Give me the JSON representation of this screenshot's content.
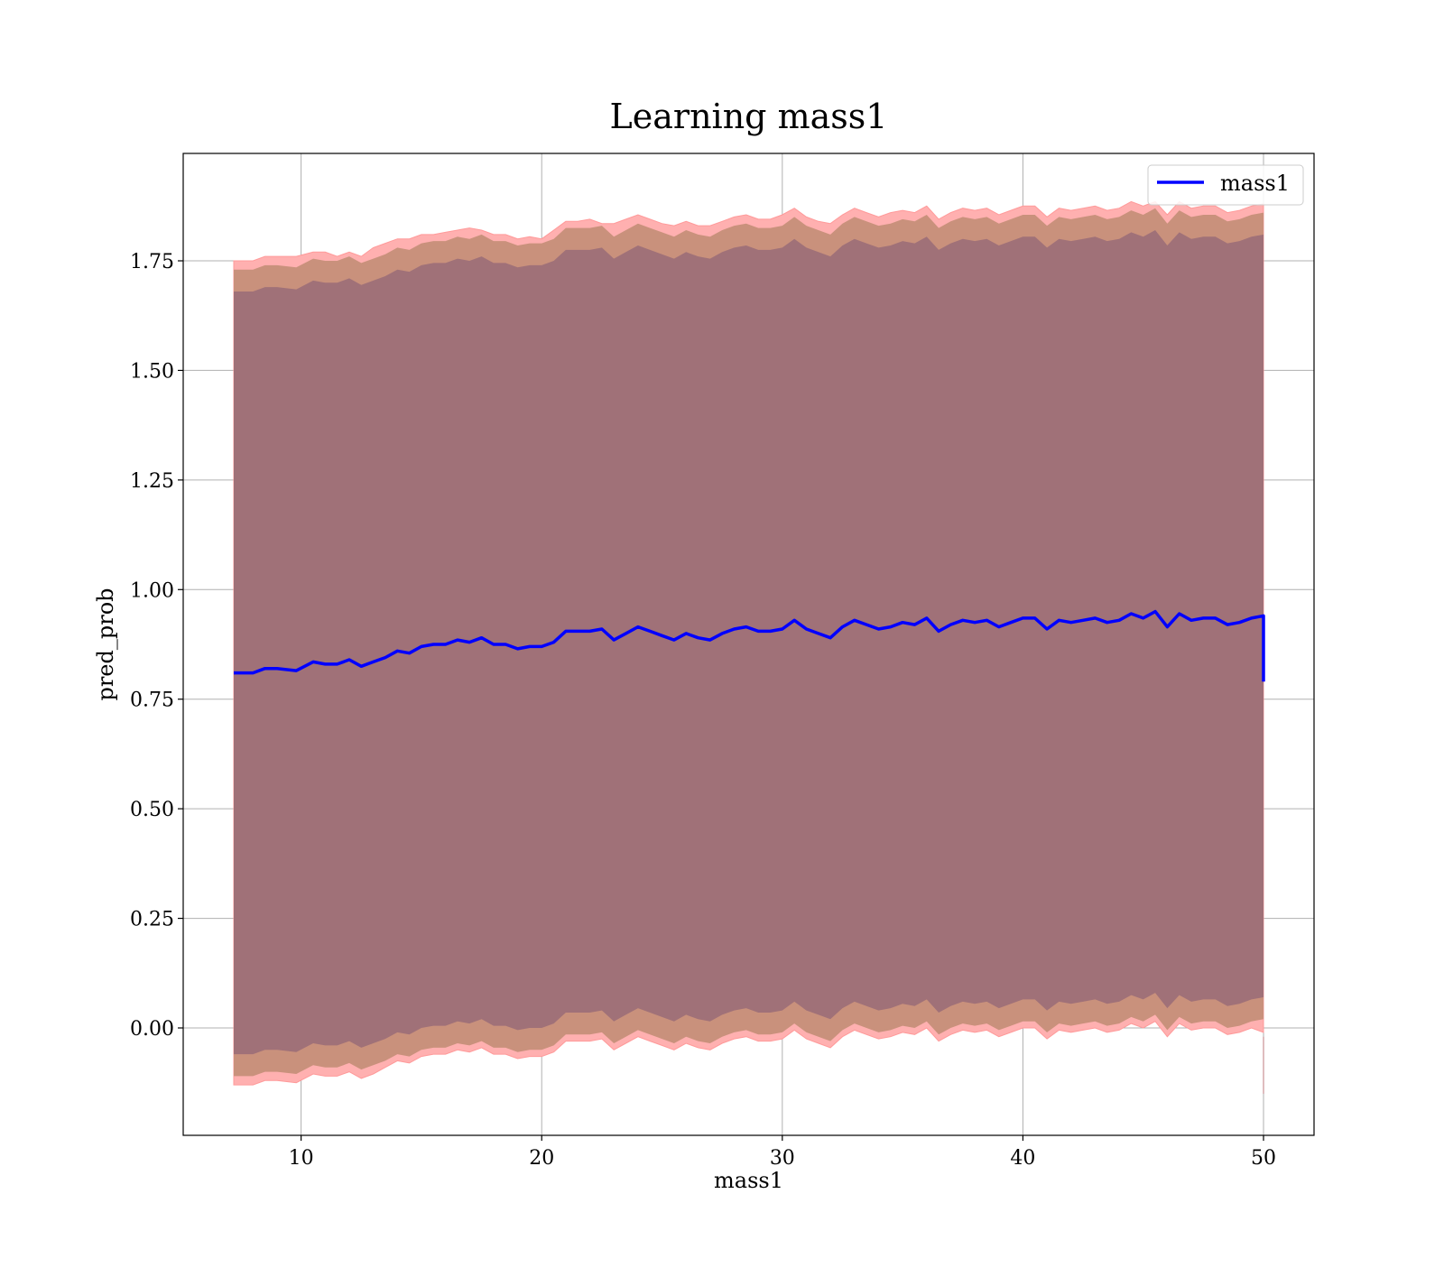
{
  "chart_data": {
    "type": "area",
    "title": "Learning mass1",
    "xlabel": "mass1",
    "ylabel": "pred_prob",
    "xlim": [
      5.1,
      52.1
    ],
    "ylim": [
      -0.245,
      1.995
    ],
    "x_ticks": [
      10,
      20,
      30,
      40,
      50
    ],
    "x_tick_labels": [
      "10",
      "20",
      "30",
      "40",
      "50"
    ],
    "y_ticks": [
      0.0,
      0.25,
      0.5,
      0.75,
      1.0,
      1.25,
      1.5,
      1.75
    ],
    "y_tick_labels": [
      "0.00",
      "0.25",
      "0.50",
      "0.75",
      "1.00",
      "1.25",
      "1.50",
      "1.75"
    ],
    "grid": true,
    "legend": {
      "position": "upper-right",
      "entries": [
        "mass1"
      ]
    },
    "colors": {
      "line": "#0000ff",
      "band_outer": "#ffb0b0",
      "band_middle": "#c9917c",
      "band_inner": "#a07178",
      "grid": "#b0b0b0"
    },
    "series": [
      {
        "name": "mass1",
        "x": [
          7.2,
          8.0,
          8.5,
          9.0,
          9.8,
          10.5,
          11.0,
          11.5,
          12.0,
          12.5,
          13.0,
          13.5,
          14.0,
          14.5,
          15.0,
          15.5,
          16.0,
          16.5,
          17.0,
          17.5,
          18.0,
          18.5,
          19.0,
          19.5,
          20.0,
          20.5,
          21.0,
          21.5,
          22.0,
          22.5,
          23.0,
          23.5,
          24.0,
          24.5,
          25.0,
          25.5,
          26.0,
          26.5,
          27.0,
          27.5,
          28.0,
          28.5,
          29.0,
          29.5,
          30.0,
          30.5,
          31.0,
          31.5,
          32.0,
          32.5,
          33.0,
          33.5,
          34.0,
          34.5,
          35.0,
          35.5,
          36.0,
          36.5,
          37.0,
          37.5,
          38.0,
          38.5,
          39.0,
          39.5,
          40.0,
          40.5,
          41.0,
          41.5,
          42.0,
          42.5,
          43.0,
          43.5,
          44.0,
          44.5,
          45.0,
          45.5,
          46.0,
          46.5,
          47.0,
          47.5,
          48.0,
          48.5,
          49.0,
          49.5,
          50.0
        ],
        "y": [
          0.81,
          0.81,
          0.82,
          0.82,
          0.815,
          0.835,
          0.83,
          0.83,
          0.84,
          0.825,
          0.835,
          0.845,
          0.86,
          0.855,
          0.87,
          0.875,
          0.875,
          0.885,
          0.88,
          0.89,
          0.875,
          0.875,
          0.865,
          0.87,
          0.87,
          0.88,
          0.905,
          0.905,
          0.905,
          0.91,
          0.885,
          0.9,
          0.915,
          0.905,
          0.895,
          0.885,
          0.9,
          0.89,
          0.885,
          0.9,
          0.91,
          0.915,
          0.905,
          0.905,
          0.91,
          0.93,
          0.91,
          0.9,
          0.89,
          0.915,
          0.93,
          0.92,
          0.91,
          0.915,
          0.925,
          0.92,
          0.935,
          0.905,
          0.92,
          0.93,
          0.925,
          0.93,
          0.915,
          0.925,
          0.935,
          0.935,
          0.91,
          0.93,
          0.925,
          0.93,
          0.935,
          0.925,
          0.93,
          0.945,
          0.935,
          0.95,
          0.915,
          0.945,
          0.93,
          0.935,
          0.935,
          0.92,
          0.925,
          0.935,
          0.94
        ],
        "y_end": 0.79,
        "band_outer": {
          "upper": [
            1.75,
            1.75,
            1.76,
            1.76,
            1.76,
            1.77,
            1.77,
            1.76,
            1.77,
            1.76,
            1.78,
            1.79,
            1.8,
            1.8,
            1.81,
            1.81,
            1.815,
            1.82,
            1.825,
            1.82,
            1.81,
            1.81,
            1.8,
            1.805,
            1.8,
            1.82,
            1.84,
            1.84,
            1.845,
            1.835,
            1.835,
            1.845,
            1.855,
            1.845,
            1.835,
            1.83,
            1.84,
            1.83,
            1.83,
            1.84,
            1.85,
            1.855,
            1.845,
            1.845,
            1.855,
            1.87,
            1.85,
            1.84,
            1.835,
            1.855,
            1.87,
            1.86,
            1.85,
            1.86,
            1.865,
            1.86,
            1.875,
            1.845,
            1.86,
            1.87,
            1.865,
            1.87,
            1.855,
            1.865,
            1.875,
            1.875,
            1.85,
            1.87,
            1.865,
            1.87,
            1.875,
            1.865,
            1.87,
            1.885,
            1.875,
            1.885,
            1.855,
            1.885,
            1.87,
            1.875,
            1.875,
            1.86,
            1.865,
            1.875,
            1.88
          ],
          "lower": [
            -0.13,
            -0.13,
            -0.12,
            -0.12,
            -0.125,
            -0.105,
            -0.11,
            -0.11,
            -0.1,
            -0.115,
            -0.105,
            -0.09,
            -0.075,
            -0.08,
            -0.065,
            -0.06,
            -0.06,
            -0.05,
            -0.055,
            -0.045,
            -0.06,
            -0.06,
            -0.07,
            -0.065,
            -0.065,
            -0.055,
            -0.03,
            -0.03,
            -0.03,
            -0.025,
            -0.05,
            -0.035,
            -0.02,
            -0.03,
            -0.04,
            -0.05,
            -0.035,
            -0.045,
            -0.05,
            -0.035,
            -0.025,
            -0.02,
            -0.03,
            -0.03,
            -0.025,
            -0.005,
            -0.025,
            -0.035,
            -0.045,
            -0.02,
            -0.005,
            -0.015,
            -0.025,
            -0.02,
            -0.01,
            -0.015,
            0.0,
            -0.03,
            -0.015,
            -0.005,
            -0.01,
            -0.005,
            -0.02,
            -0.01,
            0.0,
            0.0,
            -0.025,
            -0.005,
            -0.01,
            -0.005,
            0.0,
            -0.01,
            -0.005,
            0.01,
            0.0,
            0.015,
            -0.02,
            0.01,
            -0.005,
            0.0,
            0.0,
            -0.015,
            -0.01,
            0.0,
            -0.01
          ]
        },
        "band_middle": {
          "upper": [
            1.73,
            1.73,
            1.74,
            1.74,
            1.735,
            1.755,
            1.75,
            1.75,
            1.76,
            1.745,
            1.755,
            1.765,
            1.78,
            1.775,
            1.79,
            1.795,
            1.795,
            1.805,
            1.8,
            1.81,
            1.795,
            1.795,
            1.785,
            1.79,
            1.79,
            1.8,
            1.825,
            1.825,
            1.825,
            1.83,
            1.805,
            1.82,
            1.835,
            1.825,
            1.815,
            1.805,
            1.82,
            1.81,
            1.805,
            1.82,
            1.83,
            1.835,
            1.825,
            1.825,
            1.83,
            1.85,
            1.83,
            1.82,
            1.81,
            1.835,
            1.85,
            1.84,
            1.83,
            1.835,
            1.845,
            1.84,
            1.855,
            1.825,
            1.84,
            1.85,
            1.845,
            1.85,
            1.835,
            1.845,
            1.855,
            1.855,
            1.83,
            1.85,
            1.845,
            1.85,
            1.855,
            1.845,
            1.85,
            1.865,
            1.855,
            1.87,
            1.835,
            1.865,
            1.85,
            1.855,
            1.855,
            1.84,
            1.845,
            1.855,
            1.86
          ],
          "lower": [
            -0.11,
            -0.11,
            -0.1,
            -0.1,
            -0.105,
            -0.085,
            -0.09,
            -0.09,
            -0.08,
            -0.095,
            -0.085,
            -0.075,
            -0.06,
            -0.065,
            -0.05,
            -0.045,
            -0.045,
            -0.035,
            -0.04,
            -0.03,
            -0.045,
            -0.045,
            -0.055,
            -0.05,
            -0.05,
            -0.04,
            -0.015,
            -0.015,
            -0.015,
            -0.01,
            -0.035,
            -0.02,
            -0.005,
            -0.015,
            -0.025,
            -0.035,
            -0.02,
            -0.03,
            -0.035,
            -0.02,
            -0.01,
            -0.005,
            -0.015,
            -0.015,
            -0.01,
            0.01,
            -0.01,
            -0.02,
            -0.03,
            -0.005,
            0.01,
            0.0,
            -0.01,
            -0.005,
            0.005,
            0.0,
            0.015,
            -0.015,
            0.0,
            0.01,
            0.005,
            0.01,
            -0.005,
            0.005,
            0.015,
            0.015,
            -0.01,
            0.01,
            0.005,
            0.01,
            0.015,
            0.005,
            0.01,
            0.025,
            0.015,
            0.03,
            -0.005,
            0.025,
            0.01,
            0.015,
            0.015,
            0.0,
            0.005,
            0.015,
            0.02
          ]
        },
        "band_inner": {
          "upper": [
            1.68,
            1.68,
            1.69,
            1.69,
            1.685,
            1.705,
            1.7,
            1.7,
            1.71,
            1.695,
            1.705,
            1.715,
            1.73,
            1.725,
            1.74,
            1.745,
            1.745,
            1.755,
            1.75,
            1.76,
            1.745,
            1.745,
            1.735,
            1.74,
            1.74,
            1.75,
            1.775,
            1.775,
            1.775,
            1.78,
            1.755,
            1.77,
            1.785,
            1.775,
            1.765,
            1.755,
            1.77,
            1.76,
            1.755,
            1.77,
            1.78,
            1.785,
            1.775,
            1.775,
            1.78,
            1.8,
            1.78,
            1.77,
            1.76,
            1.785,
            1.8,
            1.79,
            1.78,
            1.785,
            1.795,
            1.79,
            1.805,
            1.775,
            1.79,
            1.8,
            1.795,
            1.8,
            1.785,
            1.795,
            1.805,
            1.805,
            1.78,
            1.8,
            1.795,
            1.8,
            1.805,
            1.795,
            1.8,
            1.815,
            1.805,
            1.82,
            1.785,
            1.815,
            1.8,
            1.805,
            1.805,
            1.79,
            1.795,
            1.805,
            1.81
          ],
          "lower": [
            -0.06,
            -0.06,
            -0.05,
            -0.05,
            -0.055,
            -0.035,
            -0.04,
            -0.04,
            -0.03,
            -0.045,
            -0.035,
            -0.025,
            -0.01,
            -0.015,
            0.0,
            0.005,
            0.005,
            0.015,
            0.01,
            0.02,
            0.005,
            0.005,
            -0.005,
            0.0,
            0.0,
            0.01,
            0.035,
            0.035,
            0.035,
            0.04,
            0.015,
            0.03,
            0.045,
            0.035,
            0.025,
            0.015,
            0.03,
            0.02,
            0.015,
            0.03,
            0.04,
            0.045,
            0.035,
            0.035,
            0.04,
            0.06,
            0.04,
            0.03,
            0.02,
            0.045,
            0.06,
            0.05,
            0.04,
            0.045,
            0.055,
            0.05,
            0.065,
            0.035,
            0.05,
            0.06,
            0.055,
            0.06,
            0.045,
            0.055,
            0.065,
            0.065,
            0.04,
            0.06,
            0.055,
            0.06,
            0.065,
            0.055,
            0.06,
            0.075,
            0.065,
            0.08,
            0.045,
            0.075,
            0.06,
            0.065,
            0.065,
            0.05,
            0.055,
            0.065,
            0.07
          ]
        }
      }
    ]
  }
}
